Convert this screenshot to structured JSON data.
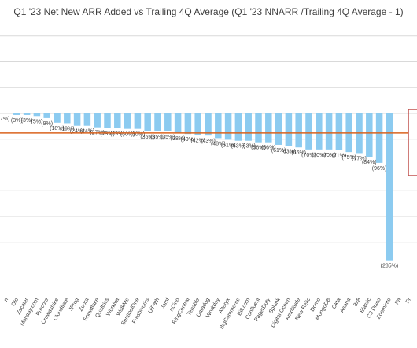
{
  "chart_data": {
    "type": "bar",
    "title": "Q1 '23 Net New ARR Added vs Trailing 4Q Average (Q1 '23 NNARR /Trailing 4Q Average - 1)",
    "categories": [
      "n",
      "Olo",
      "Zscaler",
      "Monday.com",
      "Procore",
      "Crowdstrike",
      "Cloudflare",
      "JFrog",
      "Zuora",
      "Snowflake",
      "Qualtrics",
      "Workiva",
      "WalkMe",
      "SentinelOne",
      "Freshworks",
      "UiPath",
      "Jamf",
      "nCino",
      "RingCentral",
      "Tenable",
      "Datadog",
      "Workday",
      "Alteryx",
      "BigCommerce",
      "Bill.com",
      "Confluent",
      "PagerDuty",
      "Splunk",
      "Digital Ocean",
      "Amplitude",
      "New Relic",
      "Domo",
      "MongoDB",
      "Okta",
      "Asana",
      "8x8",
      "Elastic",
      "C3 Disco",
      "ZoomInfo",
      "Fa",
      "Fr"
    ],
    "values": [
      null,
      -3,
      -3,
      -5,
      -9,
      -18,
      -19,
      -24,
      -24,
      -27,
      -29,
      -29,
      -30,
      -30,
      -35,
      -35,
      -35,
      -38,
      -40,
      -42,
      -43,
      -48,
      -51,
      -53,
      -53,
      -56,
      -56,
      -61,
      -63,
      -66,
      -70,
      -70,
      -70,
      -71,
      -75,
      -77,
      -84,
      -96,
      -285,
      null,
      null
    ],
    "data_labels": [
      "",
      "(3%)",
      "(3%)",
      "(5%)",
      "(9%)",
      "(18%)",
      "(19%)",
      "(24%)",
      "(24%)",
      "(27%)",
      "(29%)",
      "(29%)",
      "(30%)",
      "(30%)",
      "(35%)",
      "(35%)",
      "(35%)",
      "(38%)",
      "(40%)",
      "(42%)",
      "(43%)",
      "(48%)",
      "(51%)",
      "(53%)",
      "(53%)",
      "(56%)",
      "(56%)",
      "(61%)",
      "(63%)",
      "(66%)",
      "(70%)",
      "(70%)",
      "(70%)",
      "(71%)",
      "(75%)",
      "(77%)",
      "(84%)",
      "(96%)",
      "(285%)",
      "",
      ""
    ],
    "partial_first_label": "7%)",
    "average_line_value": -38,
    "ylim": [
      -300,
      200
    ],
    "grid": true,
    "colors": {
      "bar": "#8ccbf0",
      "average_line": "#d9631e",
      "callout_border": "#c0504d",
      "grid": "#d9d9d9",
      "text": "#404040"
    }
  }
}
